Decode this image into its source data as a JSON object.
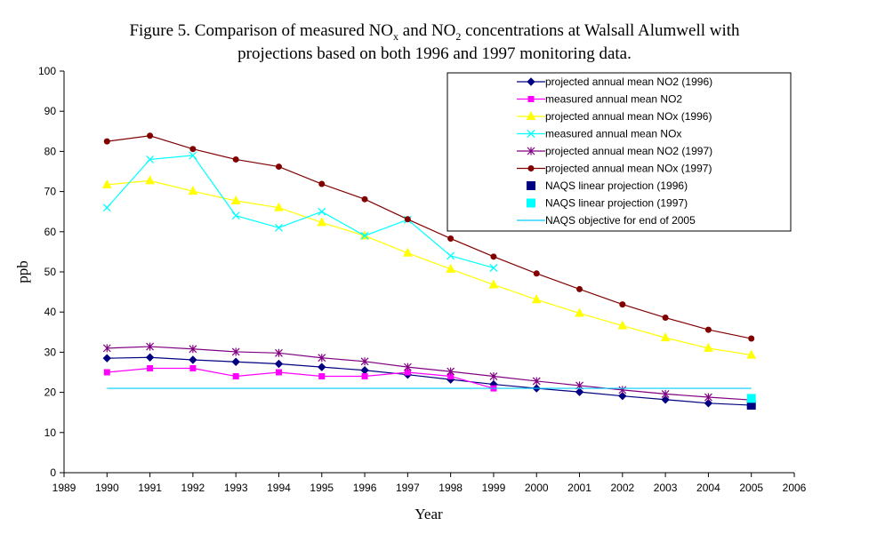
{
  "chart_data": {
    "type": "line",
    "title_line1_prefix": "Figure 5. Comparison of measured NO",
    "title_line1_sub_x": "x",
    "title_line1_mid": " and NO",
    "title_line1_sub_2": "2",
    "title_line1_suffix": " concentrations at Walsall Alumwell with",
    "title_line2": "projections based on both 1996 and 1997 monitoring data.",
    "xlabel": "Year",
    "ylabel": "ppb",
    "xlim": [
      1989,
      2006
    ],
    "ylim": [
      0,
      100
    ],
    "x_ticks": [
      1989,
      1990,
      1991,
      1992,
      1993,
      1994,
      1995,
      1996,
      1997,
      1998,
      1999,
      2000,
      2001,
      2002,
      2003,
      2004,
      2005,
      2006
    ],
    "y_ticks": [
      0,
      10,
      20,
      30,
      40,
      50,
      60,
      70,
      80,
      90,
      100
    ],
    "grid": false,
    "legend_position": "top-right",
    "series": [
      {
        "name": "projected annual mean NO2 (1996)",
        "color": "#000080",
        "marker": "diamond",
        "line": true,
        "x": [
          1990,
          1991,
          1992,
          1993,
          1994,
          1995,
          1996,
          1997,
          1998,
          1999,
          2000,
          2001,
          2002,
          2003,
          2004,
          2005
        ],
        "y": [
          28.5,
          28.7,
          28.1,
          27.6,
          27.1,
          26.3,
          25.5,
          24.4,
          23.2,
          22.0,
          21.0,
          20.1,
          19.1,
          18.2,
          17.3,
          16.8
        ]
      },
      {
        "name": "measured annual mean NO2",
        "color": "#ff00ff",
        "marker": "square",
        "line": true,
        "x": [
          1990,
          1991,
          1992,
          1993,
          1994,
          1995,
          1996,
          1997,
          1998,
          1999
        ],
        "y": [
          25,
          26,
          26,
          24,
          25,
          24,
          24,
          25,
          24,
          21
        ]
      },
      {
        "name": "projected annual mean NOx (1996)",
        "color": "#ffff00",
        "marker": "triangle",
        "line": true,
        "x": [
          1990,
          1991,
          1992,
          1993,
          1994,
          1995,
          1996,
          1997,
          1998,
          1999,
          2000,
          2001,
          2002,
          2003,
          2004,
          2005
        ],
        "y": [
          71.7,
          72.7,
          70.1,
          67.7,
          66.0,
          62.3,
          59.0,
          54.7,
          50.7,
          46.8,
          43.1,
          39.7,
          36.6,
          33.6,
          31.0,
          29.3
        ]
      },
      {
        "name": "measured annual mean NOx",
        "color": "#00ffff",
        "marker": "x",
        "line": true,
        "x": [
          1990,
          1991,
          1992,
          1993,
          1994,
          1995,
          1996,
          1997,
          1998,
          1999
        ],
        "y": [
          66,
          78,
          79,
          64,
          61,
          65,
          59,
          63,
          54,
          51
        ]
      },
      {
        "name": "projected annual mean NO2 (1997)",
        "color": "#800080",
        "marker": "star",
        "line": true,
        "x": [
          1990,
          1991,
          1992,
          1993,
          1994,
          1995,
          1996,
          1997,
          1998,
          1999,
          2000,
          2001,
          2002,
          2003,
          2004,
          2005
        ],
        "y": [
          31.0,
          31.4,
          30.8,
          30.1,
          29.8,
          28.6,
          27.7,
          26.3,
          25.2,
          24.0,
          22.8,
          21.7,
          20.6,
          19.6,
          18.8,
          18.1
        ]
      },
      {
        "name": "projected annual mean NOx (1997)",
        "color": "#800000",
        "marker": "circle",
        "line": true,
        "x": [
          1990,
          1991,
          1992,
          1993,
          1994,
          1995,
          1996,
          1997,
          1998,
          1999,
          2000,
          2001,
          2002,
          2003,
          2004,
          2005
        ],
        "y": [
          82.5,
          83.9,
          80.6,
          78.0,
          76.2,
          71.9,
          68.1,
          63.1,
          58.3,
          53.8,
          49.6,
          45.7,
          41.9,
          38.6,
          35.6,
          33.4
        ]
      },
      {
        "name": "NAQS linear projection (1996)",
        "color": "#000080",
        "marker": "bigsquare",
        "line": false,
        "x": [
          2005
        ],
        "y": [
          16.8
        ]
      },
      {
        "name": "NAQS linear projection (1997)",
        "color": "#00ffff",
        "marker": "bigsquare",
        "line": false,
        "x": [
          2005
        ],
        "y": [
          18.5
        ]
      },
      {
        "name": "NAQS objective for end of 2005",
        "color": "#00ccff",
        "marker": "dash",
        "line": true,
        "x": [
          1990,
          1991,
          1992,
          1993,
          1994,
          1995,
          1996,
          1997,
          1998,
          1999,
          2000,
          2001,
          2002,
          2003,
          2004,
          2005
        ],
        "y": [
          21,
          21,
          21,
          21,
          21,
          21,
          21,
          21,
          21,
          21,
          21,
          21,
          21,
          21,
          21,
          21
        ]
      }
    ]
  }
}
